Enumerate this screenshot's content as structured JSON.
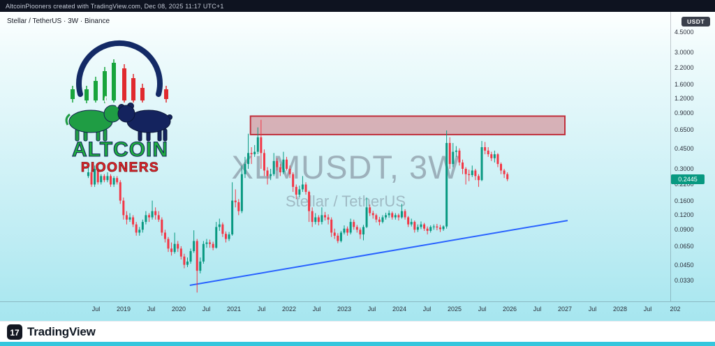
{
  "top_bar": {
    "attribution": "AltcoinPiooners created with TradingView.com, Dec 08, 2025 11:17 UTC+1"
  },
  "header": {
    "symbol_info": "Stellar / TetherUS · 3W · Binance",
    "currency_button": "USDT"
  },
  "watermark": {
    "line1": "XLMUSDT, 3W",
    "line2": "Stellar / TetherUS"
  },
  "logo": {
    "line1": "ALTCOIN",
    "line2": "PIOONERS"
  },
  "footer": {
    "brand": "TradingView"
  },
  "price_label": {
    "value": "0.2445"
  },
  "chart_data": {
    "type": "candlestick",
    "symbol": "XLMUSDT",
    "name": "Stellar / TetherUS",
    "exchange": "Binance",
    "interval": "3W",
    "scale": "log",
    "grid": false,
    "last_price": 0.2445,
    "start_time": 2018.36,
    "step_years": 0.058,
    "y_axis_labels": [
      "4.5000",
      "3.0000",
      "2.2000",
      "1.6000",
      "1.2000",
      "0.9000",
      "0.6500",
      "0.4500",
      "0.3000",
      "0.2200",
      "0.1600",
      "0.1200",
      "0.0900",
      "0.0650",
      "0.0450",
      "0.0330"
    ],
    "x_axis_labels": [
      "Jul",
      "2019",
      "Jul",
      "2020",
      "Jul",
      "2021",
      "Jul",
      "2022",
      "Jul",
      "2023",
      "Jul",
      "2024",
      "Jul",
      "2025",
      "Jul",
      "2026",
      "Jul",
      "2027",
      "Jul",
      "2028",
      "Jul",
      "202"
    ],
    "resistance_zone": {
      "time_start": 2021.3,
      "time_end": 2027.0,
      "price_top": 0.85,
      "price_bottom": 0.59
    },
    "trendline": {
      "time_start": 2020.2,
      "price_start": 0.03,
      "time_end": 2027.05,
      "price_end": 0.108
    },
    "colors": {
      "up": "#089981",
      "down": "#f23645",
      "zone_fill": "rgba(204,65,75,0.38)",
      "zone_border": "#c0303c",
      "trendline": "#2962ff",
      "price_label_bg": "#089981",
      "background_top": "#fdffff",
      "background_bottom": "#a6e6ef"
    },
    "candles": [
      [
        0.26,
        0.31,
        0.25,
        0.28
      ],
      [
        0.28,
        0.29,
        0.21,
        0.22
      ],
      [
        0.22,
        0.32,
        0.21,
        0.3
      ],
      [
        0.3,
        0.31,
        0.22,
        0.23
      ],
      [
        0.23,
        0.27,
        0.22,
        0.26
      ],
      [
        0.26,
        0.27,
        0.23,
        0.24
      ],
      [
        0.24,
        0.28,
        0.23,
        0.26
      ],
      [
        0.26,
        0.27,
        0.21,
        0.22
      ],
      [
        0.22,
        0.26,
        0.21,
        0.25
      ],
      [
        0.25,
        0.26,
        0.22,
        0.23
      ],
      [
        0.23,
        0.24,
        0.15,
        0.16
      ],
      [
        0.16,
        0.17,
        0.11,
        0.12
      ],
      [
        0.12,
        0.13,
        0.1,
        0.11
      ],
      [
        0.11,
        0.125,
        0.105,
        0.115
      ],
      [
        0.115,
        0.12,
        0.095,
        0.1
      ],
      [
        0.1,
        0.105,
        0.08,
        0.085
      ],
      [
        0.085,
        0.095,
        0.08,
        0.09
      ],
      [
        0.09,
        0.11,
        0.085,
        0.105
      ],
      [
        0.105,
        0.13,
        0.1,
        0.12
      ],
      [
        0.12,
        0.125,
        0.105,
        0.115
      ],
      [
        0.115,
        0.16,
        0.11,
        0.13
      ],
      [
        0.13,
        0.14,
        0.11,
        0.12
      ],
      [
        0.12,
        0.13,
        0.105,
        0.11
      ],
      [
        0.11,
        0.115,
        0.08,
        0.085
      ],
      [
        0.085,
        0.09,
        0.07,
        0.075
      ],
      [
        0.075,
        0.078,
        0.058,
        0.062
      ],
      [
        0.062,
        0.07,
        0.054,
        0.058
      ],
      [
        0.058,
        0.085,
        0.056,
        0.068
      ],
      [
        0.068,
        0.072,
        0.058,
        0.062
      ],
      [
        0.062,
        0.065,
        0.05,
        0.053
      ],
      [
        0.053,
        0.056,
        0.042,
        0.045
      ],
      [
        0.045,
        0.052,
        0.043,
        0.048
      ],
      [
        0.048,
        0.062,
        0.046,
        0.059
      ],
      [
        0.059,
        0.089,
        0.057,
        0.072
      ],
      [
        0.072,
        0.075,
        0.026,
        0.04
      ],
      [
        0.04,
        0.052,
        0.038,
        0.048
      ],
      [
        0.048,
        0.072,
        0.046,
        0.068
      ],
      [
        0.068,
        0.075,
        0.063,
        0.07
      ],
      [
        0.07,
        0.074,
        0.063,
        0.068
      ],
      [
        0.068,
        0.071,
        0.06,
        0.063
      ],
      [
        0.063,
        0.105,
        0.062,
        0.095
      ],
      [
        0.095,
        0.112,
        0.088,
        0.1
      ],
      [
        0.1,
        0.104,
        0.078,
        0.083
      ],
      [
        0.083,
        0.087,
        0.07,
        0.075
      ],
      [
        0.075,
        0.086,
        0.072,
        0.082
      ],
      [
        0.082,
        0.23,
        0.08,
        0.16
      ],
      [
        0.16,
        0.2,
        0.14,
        0.155
      ],
      [
        0.155,
        0.165,
        0.12,
        0.13
      ],
      [
        0.13,
        0.32,
        0.125,
        0.27
      ],
      [
        0.27,
        0.38,
        0.25,
        0.33
      ],
      [
        0.33,
        0.6,
        0.3,
        0.41
      ],
      [
        0.41,
        0.46,
        0.33,
        0.4
      ],
      [
        0.4,
        0.48,
        0.38,
        0.42
      ],
      [
        0.42,
        0.68,
        0.4,
        0.56
      ],
      [
        0.56,
        0.79,
        0.3,
        0.41
      ],
      [
        0.41,
        0.44,
        0.26,
        0.29
      ],
      [
        0.29,
        0.31,
        0.22,
        0.26
      ],
      [
        0.26,
        0.3,
        0.24,
        0.27
      ],
      [
        0.27,
        0.41,
        0.26,
        0.35
      ],
      [
        0.35,
        0.37,
        0.29,
        0.31
      ],
      [
        0.31,
        0.33,
        0.26,
        0.28
      ],
      [
        0.28,
        0.42,
        0.27,
        0.36
      ],
      [
        0.36,
        0.38,
        0.29,
        0.3
      ],
      [
        0.3,
        0.32,
        0.25,
        0.27
      ],
      [
        0.27,
        0.28,
        0.19,
        0.21
      ],
      [
        0.21,
        0.22,
        0.165,
        0.18
      ],
      [
        0.18,
        0.215,
        0.17,
        0.2
      ],
      [
        0.2,
        0.26,
        0.19,
        0.22
      ],
      [
        0.22,
        0.23,
        0.18,
        0.19
      ],
      [
        0.19,
        0.195,
        0.105,
        0.13
      ],
      [
        0.13,
        0.14,
        0.095,
        0.105
      ],
      [
        0.105,
        0.125,
        0.1,
        0.115
      ],
      [
        0.115,
        0.12,
        0.098,
        0.105
      ],
      [
        0.105,
        0.14,
        0.1,
        0.12
      ],
      [
        0.12,
        0.128,
        0.108,
        0.115
      ],
      [
        0.115,
        0.122,
        0.1,
        0.11
      ],
      [
        0.11,
        0.115,
        0.078,
        0.085
      ],
      [
        0.085,
        0.092,
        0.075,
        0.08
      ],
      [
        0.08,
        0.084,
        0.069,
        0.072
      ],
      [
        0.072,
        0.088,
        0.07,
        0.085
      ],
      [
        0.085,
        0.098,
        0.082,
        0.092
      ],
      [
        0.092,
        0.096,
        0.08,
        0.085
      ],
      [
        0.085,
        0.112,
        0.082,
        0.105
      ],
      [
        0.105,
        0.11,
        0.09,
        0.095
      ],
      [
        0.095,
        0.099,
        0.085,
        0.09
      ],
      [
        0.09,
        0.094,
        0.075,
        0.082
      ],
      [
        0.082,
        0.099,
        0.073,
        0.095
      ],
      [
        0.095,
        0.17,
        0.093,
        0.14
      ],
      [
        0.14,
        0.148,
        0.118,
        0.125
      ],
      [
        0.125,
        0.131,
        0.112,
        0.12
      ],
      [
        0.12,
        0.124,
        0.104,
        0.11
      ],
      [
        0.11,
        0.116,
        0.098,
        0.105
      ],
      [
        0.105,
        0.12,
        0.102,
        0.115
      ],
      [
        0.115,
        0.126,
        0.11,
        0.12
      ],
      [
        0.12,
        0.132,
        0.114,
        0.125
      ],
      [
        0.125,
        0.129,
        0.11,
        0.115
      ],
      [
        0.115,
        0.125,
        0.11,
        0.12
      ],
      [
        0.12,
        0.124,
        0.108,
        0.115
      ],
      [
        0.115,
        0.15,
        0.112,
        0.13
      ],
      [
        0.13,
        0.135,
        0.11,
        0.115
      ],
      [
        0.115,
        0.118,
        0.095,
        0.1
      ],
      [
        0.1,
        0.112,
        0.096,
        0.105
      ],
      [
        0.105,
        0.108,
        0.085,
        0.09
      ],
      [
        0.09,
        0.1,
        0.086,
        0.095
      ],
      [
        0.095,
        0.106,
        0.091,
        0.1
      ],
      [
        0.1,
        0.103,
        0.088,
        0.092
      ],
      [
        0.092,
        0.096,
        0.082,
        0.088
      ],
      [
        0.088,
        0.098,
        0.085,
        0.095
      ],
      [
        0.095,
        0.1,
        0.09,
        0.096
      ],
      [
        0.096,
        0.101,
        0.089,
        0.094
      ],
      [
        0.094,
        0.099,
        0.086,
        0.091
      ],
      [
        0.091,
        0.098,
        0.088,
        0.096
      ],
      [
        0.096,
        0.64,
        0.092,
        0.5
      ],
      [
        0.5,
        0.56,
        0.3,
        0.33
      ],
      [
        0.33,
        0.5,
        0.31,
        0.42
      ],
      [
        0.42,
        0.47,
        0.38,
        0.43
      ],
      [
        0.43,
        0.45,
        0.32,
        0.34
      ],
      [
        0.34,
        0.36,
        0.27,
        0.3
      ],
      [
        0.3,
        0.31,
        0.22,
        0.27
      ],
      [
        0.27,
        0.295,
        0.235,
        0.265
      ],
      [
        0.265,
        0.32,
        0.255,
        0.29
      ],
      [
        0.29,
        0.3,
        0.24,
        0.26
      ],
      [
        0.26,
        0.27,
        0.21,
        0.24
      ],
      [
        0.24,
        0.52,
        0.235,
        0.46
      ],
      [
        0.46,
        0.51,
        0.4,
        0.43
      ],
      [
        0.43,
        0.46,
        0.38,
        0.4
      ],
      [
        0.4,
        0.42,
        0.35,
        0.37
      ],
      [
        0.37,
        0.43,
        0.34,
        0.4
      ],
      [
        0.4,
        0.41,
        0.31,
        0.33
      ],
      [
        0.33,
        0.34,
        0.27,
        0.29
      ],
      [
        0.29,
        0.3,
        0.25,
        0.27
      ],
      [
        0.27,
        0.28,
        0.235,
        0.2445
      ]
    ]
  }
}
